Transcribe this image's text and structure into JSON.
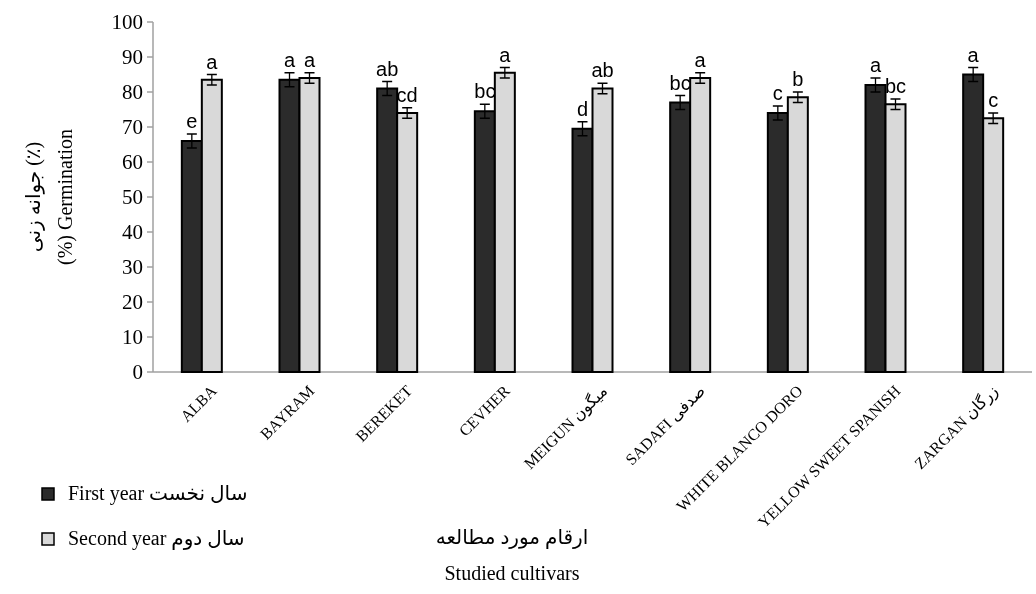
{
  "chart_data": {
    "type": "bar",
    "xlabel": "ارقام مورد مطالعه\nStudied cultivars",
    "ylabel": "جوانه زنی (٪)\n(%) Germination",
    "categories": [
      "ALBA",
      "BAYRAM",
      "BEREKET",
      "CEVHER",
      "MEIGUN میگون",
      "SADAFI صدفی",
      "WHITE BLANCO DORO",
      "YELLOW SWEET SPANISH",
      "ZARGAN زرگان"
    ],
    "series": [
      {
        "name": "First year  سال نخست",
        "color": "#2b2b2b",
        "values": [
          66,
          83.5,
          81,
          74.5,
          69.5,
          77,
          74,
          82,
          85
        ],
        "errors": [
          2,
          2,
          2,
          2,
          2,
          2,
          2,
          2,
          2
        ],
        "value_labels": [
          "e",
          "a",
          "ab",
          "bc",
          "d",
          "bc",
          "c",
          "a",
          "a"
        ]
      },
      {
        "name": "Second year  سال دوم",
        "color": "#d9d9d9",
        "values": [
          83.5,
          84,
          74,
          85.5,
          81,
          84,
          78.5,
          76.5,
          72.5
        ],
        "errors": [
          1.5,
          1.5,
          1.5,
          1.5,
          1.5,
          1.5,
          1.5,
          1.5,
          1.5
        ],
        "value_labels": [
          "a",
          "a",
          "cd",
          "a",
          "ab",
          "a",
          "b",
          "bc",
          "c"
        ]
      }
    ],
    "ylim": [
      0,
      100
    ],
    "yticks": [
      0,
      10,
      20,
      30,
      40,
      50,
      60,
      70,
      80,
      90,
      100
    ],
    "grid": false,
    "legend": "bottom left"
  }
}
